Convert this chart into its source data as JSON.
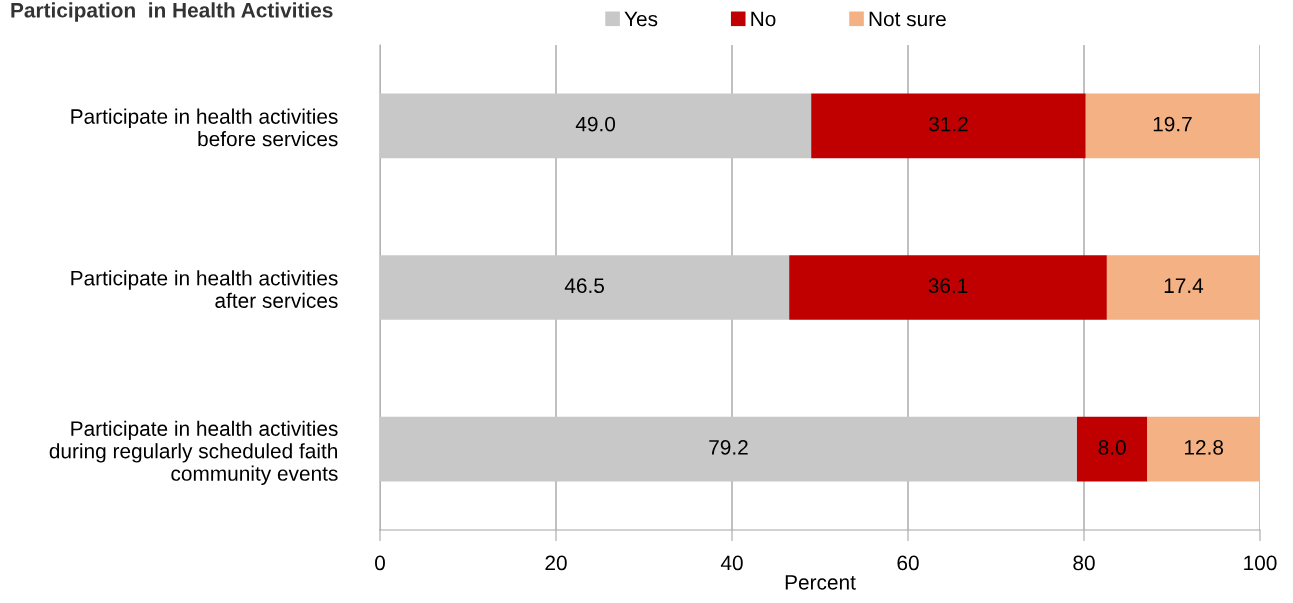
{
  "chart_data": {
    "type": "bar",
    "orientation": "horizontal",
    "stacked": true,
    "title": "Participation  in Health Activities",
    "xlabel": "Percent",
    "categories": [
      "Participate in health activities\nbefore services",
      "Participate in health activities\nafter services",
      "Participate in health activities\nduring regularly scheduled faith\ncommunity events"
    ],
    "series": [
      {
        "name": "Yes",
        "color": "#c8c8c8",
        "values": [
          49.0,
          46.5,
          79.2
        ],
        "value_labels": [
          "49.0",
          "46.5",
          "79.2"
        ]
      },
      {
        "name": "No",
        "color": "#c00000",
        "values": [
          31.2,
          36.1,
          8.0
        ],
        "value_labels": [
          "31.2",
          "36.1",
          "8.0"
        ]
      },
      {
        "name": "Not sure",
        "color": "#f4b183",
        "values": [
          19.7,
          17.4,
          12.8
        ],
        "value_labels": [
          "19.7",
          "17.4",
          "12.8"
        ]
      }
    ],
    "xlim": [
      0,
      100
    ],
    "xticks": [
      0,
      20,
      40,
      60,
      80,
      100
    ],
    "grid": "x",
    "legend": "top"
  }
}
